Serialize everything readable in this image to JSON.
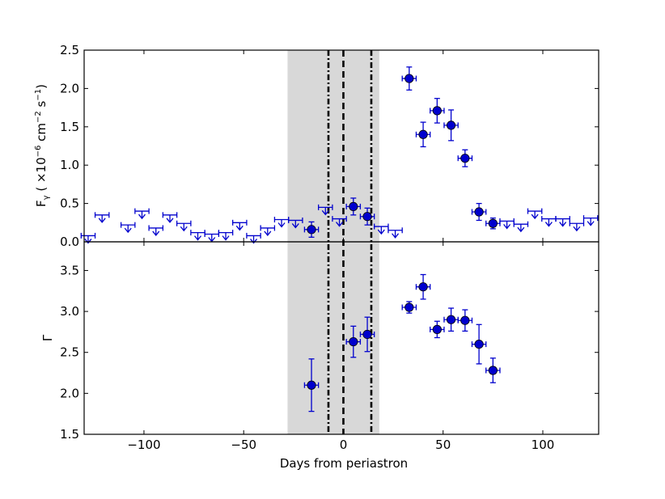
{
  "chart_data": [
    {
      "type": "scatter",
      "panel": "top",
      "ylabel_parts": {
        "prefix": "F",
        "sub": "γ",
        "open": " ( ×10",
        "exp1": "−6",
        "mid": " cm",
        "exp2": "−2",
        "unit": " s",
        "exp3": "−1",
        "close": ")"
      },
      "xlim": [
        -130,
        128
      ],
      "ylim": [
        0.0,
        2.5
      ],
      "yticks": [
        0.0,
        0.5,
        1.0,
        1.5,
        2.0,
        2.5
      ],
      "ytick_labels": [
        "0.0",
        "0.5",
        "1.0",
        "1.5",
        "2.0",
        "2.5"
      ],
      "upper_limits": [
        {
          "x": -128,
          "y": 0.08,
          "xerr": 3.5
        },
        {
          "x": -121,
          "y": 0.35,
          "xerr": 3.5
        },
        {
          "x": -108,
          "y": 0.22,
          "xerr": 3.5
        },
        {
          "x": -101,
          "y": 0.4,
          "xerr": 3.5
        },
        {
          "x": -94,
          "y": 0.18,
          "xerr": 3.5
        },
        {
          "x": -87,
          "y": 0.35,
          "xerr": 3.5
        },
        {
          "x": -80,
          "y": 0.24,
          "xerr": 3.5
        },
        {
          "x": -73,
          "y": 0.12,
          "xerr": 3.5
        },
        {
          "x": -66,
          "y": 0.1,
          "xerr": 3.5
        },
        {
          "x": -59,
          "y": 0.12,
          "xerr": 3.5
        },
        {
          "x": -52,
          "y": 0.25,
          "xerr": 3.5
        },
        {
          "x": -45,
          "y": 0.08,
          "xerr": 3.5
        },
        {
          "x": -38,
          "y": 0.18,
          "xerr": 3.5
        },
        {
          "x": -31,
          "y": 0.29,
          "xerr": 3.5
        },
        {
          "x": -24,
          "y": 0.28,
          "xerr": 3.5
        },
        {
          "x": -9,
          "y": 0.45,
          "xerr": 3.5
        },
        {
          "x": -2,
          "y": 0.3,
          "xerr": 3.5
        },
        {
          "x": 19,
          "y": 0.2,
          "xerr": 3.5
        },
        {
          "x": 26,
          "y": 0.15,
          "xerr": 3.5
        },
        {
          "x": 82,
          "y": 0.27,
          "xerr": 3.5
        },
        {
          "x": 89,
          "y": 0.23,
          "xerr": 3.5
        },
        {
          "x": 96,
          "y": 0.4,
          "xerr": 3.5
        },
        {
          "x": 103,
          "y": 0.3,
          "xerr": 3.5
        },
        {
          "x": 110,
          "y": 0.3,
          "xerr": 3.5
        },
        {
          "x": 117,
          "y": 0.24,
          "xerr": 3.5
        },
        {
          "x": 124,
          "y": 0.31,
          "xerr": 3.5
        }
      ],
      "detections": [
        {
          "x": -16,
          "y": 0.16,
          "xerr": 3.5,
          "yerr": 0.1
        },
        {
          "x": 5,
          "y": 0.46,
          "xerr": 3.5,
          "yerr": 0.11
        },
        {
          "x": 12,
          "y": 0.33,
          "xerr": 3.5,
          "yerr": 0.11
        },
        {
          "x": 33,
          "y": 2.13,
          "xerr": 3.5,
          "yerr": 0.15
        },
        {
          "x": 40,
          "y": 1.4,
          "xerr": 3.5,
          "yerr": 0.16
        },
        {
          "x": 47,
          "y": 1.71,
          "xerr": 3.5,
          "yerr": 0.16
        },
        {
          "x": 54,
          "y": 1.52,
          "xerr": 3.5,
          "yerr": 0.2
        },
        {
          "x": 61,
          "y": 1.09,
          "xerr": 3.5,
          "yerr": 0.11
        },
        {
          "x": 68,
          "y": 0.39,
          "xerr": 3.5,
          "yerr": 0.11
        },
        {
          "x": 75,
          "y": 0.24,
          "xerr": 3.5,
          "yerr": 0.07
        }
      ]
    },
    {
      "type": "scatter",
      "panel": "bottom",
      "ylabel": "Γ",
      "xlabel": "Days from periastron",
      "xlim": [
        -130,
        128
      ],
      "ylim": [
        1.5,
        3.85
      ],
      "yticks": [
        1.5,
        2.0,
        2.5,
        3.0,
        3.5
      ],
      "ytick_labels": [
        "1.5",
        "2.0",
        "2.5",
        "3.0",
        "3.5"
      ],
      "xticks": [
        -100,
        -50,
        0,
        50,
        100
      ],
      "xtick_labels": [
        "−100",
        "−50",
        "0",
        "50",
        "100"
      ],
      "detections": [
        {
          "x": -16,
          "y": 2.1,
          "xerr": 3.5,
          "yerr": 0.32
        },
        {
          "x": 5,
          "y": 2.63,
          "xerr": 3.5,
          "yerr": 0.19
        },
        {
          "x": 12,
          "y": 2.72,
          "xerr": 3.5,
          "yerr": 0.21
        },
        {
          "x": 33,
          "y": 3.05,
          "xerr": 3.5,
          "yerr": 0.07
        },
        {
          "x": 40,
          "y": 3.3,
          "xerr": 3.5,
          "yerr": 0.15
        },
        {
          "x": 47,
          "y": 2.78,
          "xerr": 3.5,
          "yerr": 0.1
        },
        {
          "x": 54,
          "y": 2.9,
          "xerr": 3.5,
          "yerr": 0.14
        },
        {
          "x": 61,
          "y": 2.89,
          "xerr": 3.5,
          "yerr": 0.13
        },
        {
          "x": 68,
          "y": 2.6,
          "xerr": 3.5,
          "yerr": 0.24
        },
        {
          "x": 75,
          "y": 2.28,
          "xerr": 3.5,
          "yerr": 0.15
        }
      ]
    }
  ],
  "annotations": {
    "shaded_region": [
      -28,
      18
    ],
    "dashed_line": 0,
    "dashdot_lines": [
      -7.5,
      14
    ]
  },
  "colors": {
    "marker": "#0000cd",
    "shade": "#d8d8d8",
    "axes": "#000000"
  }
}
